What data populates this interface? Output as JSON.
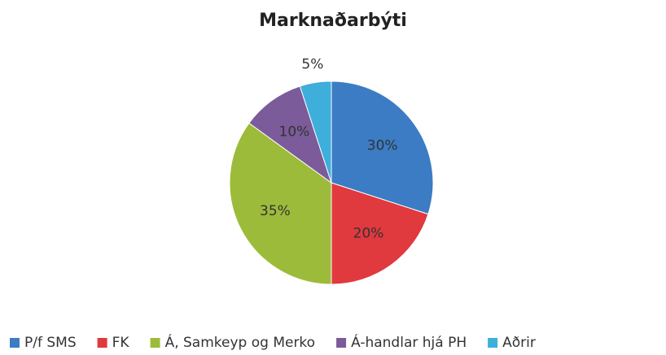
{
  "chart_data": {
    "type": "pie",
    "title": "Marknaðarbýti",
    "categories": [
      "P/f SMS",
      "FK",
      "Á, Samkeyp og Merko",
      "Á-handlar hjá PH",
      "Aðrir"
    ],
    "values": [
      30,
      20,
      35,
      10,
      5
    ],
    "value_labels": [
      "30%",
      "20%",
      "35%",
      "10%",
      "5%"
    ],
    "colors": [
      "#3b7cc4",
      "#e0393e",
      "#9dbb3a",
      "#7b5b99",
      "#3eaedb"
    ],
    "legend": "bottom"
  }
}
